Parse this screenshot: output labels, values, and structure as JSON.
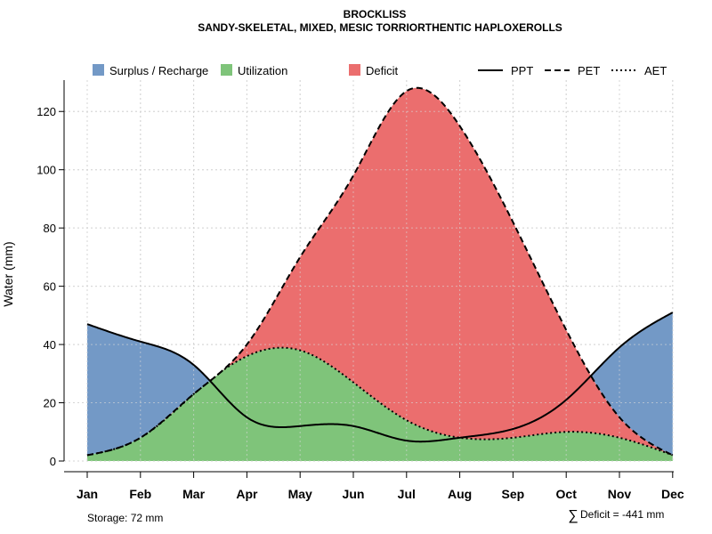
{
  "chart_data": {
    "type": "area",
    "title": "BROCKLISS",
    "subtitle": "SANDY-SKELETAL, MIXED, MESIC TORRIORTHENTIC HAPLOXEROLLS",
    "ylabel": "Water (mm)",
    "xlabel": "",
    "ylim": [
      0,
      130
    ],
    "yticks": [
      0,
      20,
      40,
      60,
      80,
      100,
      120
    ],
    "grid": true,
    "categories": [
      "Jan",
      "Feb",
      "Mar",
      "Apr",
      "May",
      "Jun",
      "Jul",
      "Aug",
      "Sep",
      "Oct",
      "Nov",
      "Dec"
    ],
    "series": [
      {
        "name": "PPT",
        "style": "solid",
        "values": [
          47,
          41,
          33,
          15,
          12,
          12,
          7,
          8,
          11,
          21,
          39,
          51
        ]
      },
      {
        "name": "PET",
        "style": "dashed",
        "values": [
          2,
          8,
          23,
          40,
          70,
          98,
          127,
          115,
          82,
          45,
          15,
          2
        ]
      },
      {
        "name": "AET",
        "style": "dotted",
        "values": [
          2,
          8,
          23,
          36,
          38,
          27,
          14,
          8,
          8,
          10,
          8,
          2
        ]
      }
    ],
    "areas": [
      {
        "name": "Surplus / Recharge",
        "color": "#7399c6"
      },
      {
        "name": "Utilization",
        "color": "#7fc47a"
      },
      {
        "name": "Deficit",
        "color": "#eb6e6e"
      }
    ],
    "legend": {
      "areas": [
        "Surplus / Recharge",
        "Utilization",
        "Deficit"
      ],
      "lines": [
        "PPT",
        "PET",
        "AET"
      ]
    },
    "annotations": {
      "storage": "Storage: 72 mm",
      "deficit_symbol": "∑",
      "deficit": "Deficit = -441 mm"
    }
  }
}
